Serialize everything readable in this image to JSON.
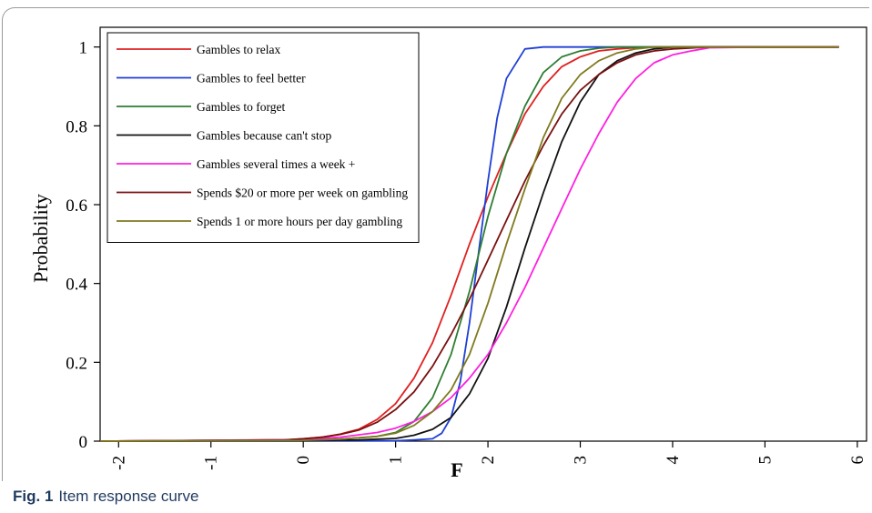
{
  "chart_data": {
    "type": "line",
    "xlabel": "F",
    "ylabel": "Probability",
    "xlim": [
      -2.2,
      6.1
    ],
    "ylim": [
      0,
      1.05
    ],
    "x_ticks": [
      "-2",
      "-1",
      "0",
      "1",
      "2",
      "3",
      "4",
      "5",
      "6"
    ],
    "y_ticks": [
      "0",
      "0.2",
      "0.4",
      "0.6",
      "0.8",
      "1"
    ],
    "grid": false,
    "legend_position": "top-left",
    "series": [
      {
        "name": "Gambles to relax",
        "color": "#e02020",
        "x": [
          -2.2,
          -0.2,
          0.0,
          0.2,
          0.4,
          0.6,
          0.8,
          1.0,
          1.2,
          1.4,
          1.6,
          1.8,
          2.0,
          2.2,
          2.4,
          2.6,
          2.8,
          3.0,
          3.2,
          3.4,
          3.6,
          3.8,
          4.0,
          4.5,
          5.0,
          5.8
        ],
        "y": [
          0,
          0.003,
          0.006,
          0.01,
          0.018,
          0.03,
          0.055,
          0.095,
          0.16,
          0.25,
          0.37,
          0.5,
          0.62,
          0.73,
          0.83,
          0.9,
          0.95,
          0.975,
          0.99,
          0.995,
          0.998,
          1,
          1,
          1,
          1,
          1
        ]
      },
      {
        "name": "Gambles to feel better",
        "color": "#1f3fd6",
        "x": [
          -2.2,
          1.0,
          1.2,
          1.4,
          1.5,
          1.6,
          1.7,
          1.8,
          1.9,
          2.0,
          2.1,
          2.2,
          2.4,
          2.6,
          2.8,
          3.0,
          4.0,
          5.8
        ],
        "y": [
          0,
          0.001,
          0.003,
          0.006,
          0.02,
          0.06,
          0.15,
          0.3,
          0.48,
          0.66,
          0.82,
          0.92,
          0.995,
          1,
          1,
          1,
          1,
          1
        ]
      },
      {
        "name": "Gambles to forget",
        "color": "#2e7d32",
        "x": [
          -2.2,
          0.0,
          0.4,
          0.8,
          1.0,
          1.2,
          1.4,
          1.6,
          1.8,
          2.0,
          2.2,
          2.4,
          2.6,
          2.8,
          3.0,
          3.2,
          3.4,
          3.6,
          4.0,
          5.8
        ],
        "y": [
          0,
          0.002,
          0.005,
          0.012,
          0.022,
          0.05,
          0.11,
          0.22,
          0.38,
          0.57,
          0.73,
          0.85,
          0.935,
          0.975,
          0.99,
          0.997,
          1,
          1,
          1,
          1
        ]
      },
      {
        "name": "Gambles because can't stop",
        "color": "#111111",
        "x": [
          -2.2,
          0.0,
          0.6,
          1.0,
          1.2,
          1.4,
          1.6,
          1.8,
          2.0,
          2.2,
          2.4,
          2.6,
          2.8,
          3.0,
          3.2,
          3.4,
          3.6,
          3.8,
          4.0,
          4.4,
          5.0,
          5.8
        ],
        "y": [
          0,
          0.001,
          0.003,
          0.007,
          0.015,
          0.03,
          0.06,
          0.12,
          0.21,
          0.34,
          0.49,
          0.63,
          0.76,
          0.86,
          0.93,
          0.965,
          0.985,
          0.995,
          1,
          1,
          1,
          1
        ]
      },
      {
        "name": "Gambles several times a week +",
        "color": "#ff1fe0",
        "x": [
          -2.2,
          0.0,
          0.4,
          0.8,
          1.0,
          1.2,
          1.4,
          1.6,
          1.8,
          2.0,
          2.2,
          2.4,
          2.6,
          2.8,
          3.0,
          3.2,
          3.4,
          3.6,
          3.8,
          4.0,
          4.2,
          4.4,
          5.0,
          5.8
        ],
        "y": [
          0,
          0.004,
          0.01,
          0.022,
          0.033,
          0.05,
          0.075,
          0.11,
          0.16,
          0.22,
          0.3,
          0.39,
          0.49,
          0.59,
          0.69,
          0.78,
          0.86,
          0.92,
          0.96,
          0.98,
          0.99,
          0.998,
          1,
          1
        ]
      },
      {
        "name": "Spends $20 or more per week on gambling",
        "color": "#7a1010",
        "x": [
          -2.2,
          -0.2,
          0.0,
          0.2,
          0.4,
          0.6,
          0.8,
          1.0,
          1.2,
          1.4,
          1.6,
          1.8,
          2.0,
          2.2,
          2.4,
          2.6,
          2.8,
          3.0,
          3.2,
          3.4,
          3.6,
          3.8,
          4.0,
          4.4,
          5.0,
          5.8
        ],
        "y": [
          0,
          0.003,
          0.006,
          0.01,
          0.017,
          0.028,
          0.048,
          0.08,
          0.125,
          0.19,
          0.27,
          0.36,
          0.46,
          0.56,
          0.66,
          0.75,
          0.83,
          0.89,
          0.93,
          0.96,
          0.98,
          0.99,
          0.995,
          1,
          1,
          1
        ]
      },
      {
        "name": "Spends 1 or more hours per day gambling",
        "color": "#7f7a1e",
        "x": [
          -2.2,
          0.0,
          0.4,
          0.8,
          1.0,
          1.2,
          1.4,
          1.6,
          1.8,
          2.0,
          2.2,
          2.4,
          2.6,
          2.8,
          3.0,
          3.2,
          3.4,
          3.6,
          3.8,
          4.0,
          4.4,
          5.0,
          5.8
        ],
        "y": [
          0,
          0.002,
          0.005,
          0.012,
          0.02,
          0.04,
          0.075,
          0.13,
          0.22,
          0.35,
          0.5,
          0.64,
          0.77,
          0.87,
          0.93,
          0.965,
          0.985,
          0.995,
          1,
          1,
          1,
          1,
          1
        ]
      }
    ]
  },
  "caption": {
    "label": "Fig. 1",
    "text": "Item response curve"
  }
}
